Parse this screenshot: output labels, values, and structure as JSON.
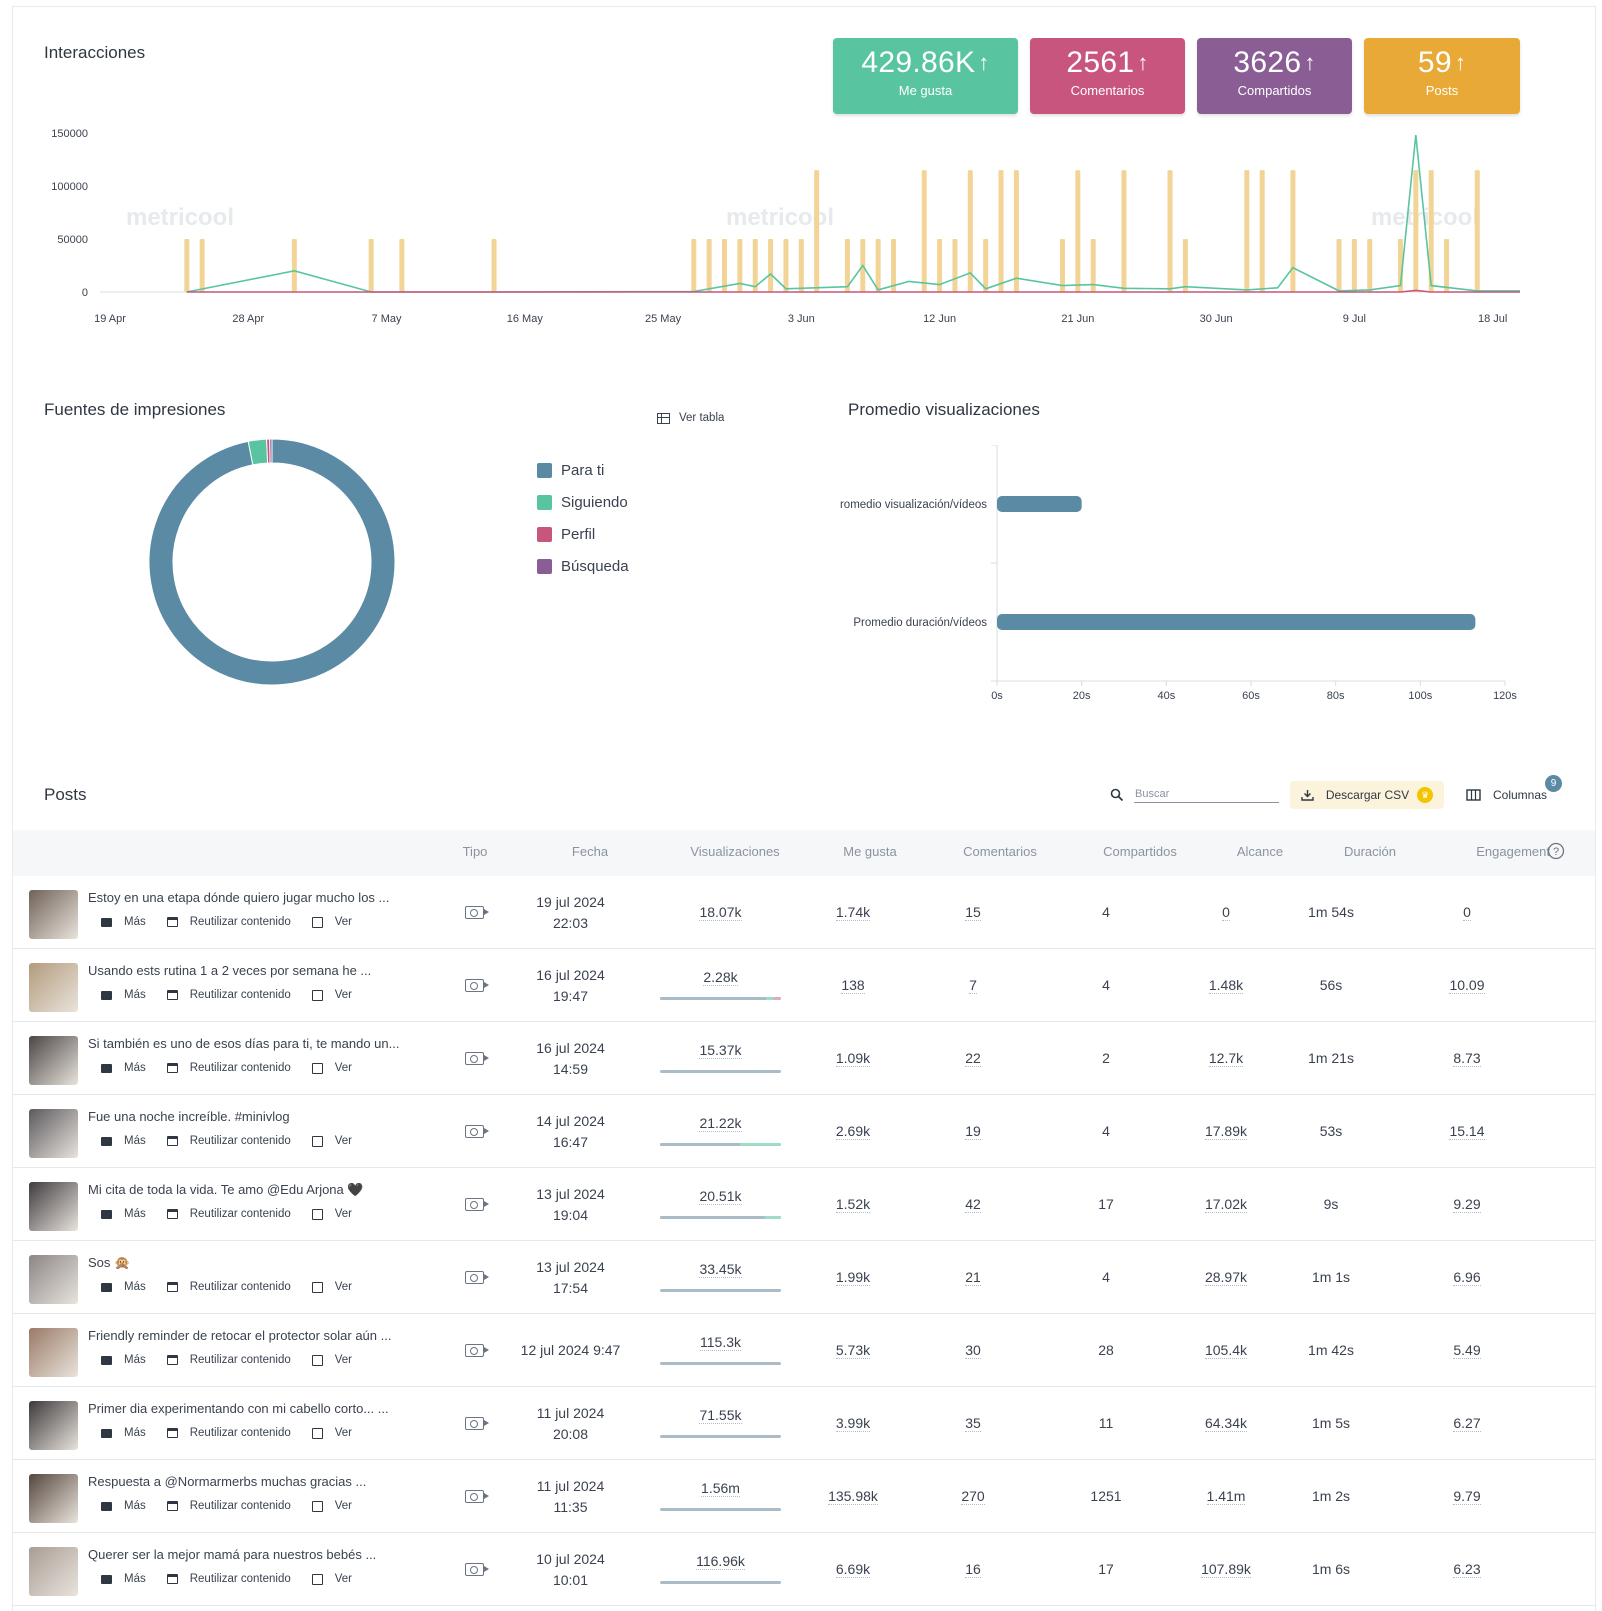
{
  "interacciones": {
    "title": "Interacciones",
    "kpis": [
      {
        "value": "429.86K",
        "label": "Me gusta",
        "color": "#59c5a0"
      },
      {
        "value": "2561",
        "label": "Comentarios",
        "color": "#c8557d"
      },
      {
        "value": "3626",
        "label": "Compartidos",
        "color": "#8a5e95"
      },
      {
        "value": "59",
        "label": "Posts",
        "color": "#e8a936"
      }
    ],
    "arrow": "↑",
    "watermark": "metricool"
  },
  "chart_data": [
    {
      "type": "line",
      "y_ticks": [
        "150000",
        "100000",
        "50000",
        "0"
      ],
      "x_ticks": [
        "19 Apr",
        "28 Apr",
        "7 May",
        "16 May",
        "25 May",
        "3 Jun",
        "12 Jun",
        "21 Jun",
        "30 Jun",
        "9 Jul",
        "18 Jul"
      ],
      "ylim": [
        0,
        150000
      ],
      "x_range_days": [
        0,
        91
      ],
      "bars_series": {
        "color": "#f2d497",
        "points": [
          [
            5,
            50000
          ],
          [
            6,
            50000
          ],
          [
            12,
            50000
          ],
          [
            17,
            50000
          ],
          [
            19,
            50000
          ],
          [
            25,
            50000
          ],
          [
            38,
            50000
          ],
          [
            39,
            50000
          ],
          [
            40,
            50000
          ],
          [
            41,
            50000
          ],
          [
            42,
            50000
          ],
          [
            43,
            50000
          ],
          [
            44,
            50000
          ],
          [
            45,
            50000
          ],
          [
            46,
            115000
          ],
          [
            48,
            50000
          ],
          [
            49,
            50000
          ],
          [
            50,
            50000
          ],
          [
            51,
            50000
          ],
          [
            53,
            115000
          ],
          [
            54,
            50000
          ],
          [
            55,
            50000
          ],
          [
            56,
            115000
          ],
          [
            57,
            50000
          ],
          [
            58,
            115000
          ],
          [
            59,
            115000
          ],
          [
            62,
            50000
          ],
          [
            63,
            115000
          ],
          [
            64,
            50000
          ],
          [
            66,
            115000
          ],
          [
            69,
            115000
          ],
          [
            70,
            50000
          ],
          [
            74,
            115000
          ],
          [
            75,
            115000
          ],
          [
            77,
            115000
          ],
          [
            80,
            50000
          ],
          [
            81,
            50000
          ],
          [
            82,
            50000
          ],
          [
            84,
            50000
          ],
          [
            85,
            115000
          ],
          [
            86,
            115000
          ],
          [
            87,
            50000
          ],
          [
            89,
            115000
          ],
          [
            92,
            50000
          ]
        ]
      },
      "series": [
        {
          "color": "#59c5a0",
          "points": [
            [
              5,
              0
            ],
            [
              12,
              20000
            ],
            [
              17,
              0
            ],
            [
              25,
              0
            ],
            [
              38,
              500
            ],
            [
              41,
              8000
            ],
            [
              42,
              5000
            ],
            [
              43,
              17000
            ],
            [
              44,
              3000
            ],
            [
              48,
              5000
            ],
            [
              49,
              25000
            ],
            [
              50,
              2000
            ],
            [
              52,
              10000
            ],
            [
              54,
              7000
            ],
            [
              56,
              18000
            ],
            [
              57,
              3000
            ],
            [
              59,
              13000
            ],
            [
              62,
              6000
            ],
            [
              64,
              7000
            ],
            [
              66,
              3500
            ],
            [
              69,
              3000
            ],
            [
              70,
              5000
            ],
            [
              74,
              2000
            ],
            [
              76,
              4000
            ],
            [
              77,
              23000
            ],
            [
              80,
              1000
            ],
            [
              82,
              2000
            ],
            [
              84,
              6000
            ],
            [
              85,
              148000
            ],
            [
              86,
              6000
            ],
            [
              89,
              1000
            ],
            [
              92,
              1000
            ]
          ]
        },
        {
          "color": "#c8557d",
          "points": [
            [
              5,
              0
            ],
            [
              84,
              0
            ],
            [
              85,
              1500
            ],
            [
              86,
              0
            ],
            [
              92,
              0
            ]
          ]
        }
      ]
    },
    {
      "type": "pie",
      "title": "Fuentes de impresiones",
      "categories": [
        "Para ti",
        "Siguiendo",
        "Perfil",
        "Búsqueda"
      ],
      "values": [
        96.9,
        2.4,
        0.4,
        0.3
      ],
      "colors": [
        "#5b8ba4",
        "#59c5a0",
        "#c8557d",
        "#8a5e95"
      ]
    },
    {
      "type": "bar",
      "title": "Promedio visualizaciones",
      "categories": [
        "Promedio visualización/vídeos",
        "Promedio duración/vídeos"
      ],
      "values": [
        20,
        113
      ],
      "xlim": [
        0,
        120
      ],
      "x_ticks": [
        "0s",
        "20s",
        "40s",
        "60s",
        "80s",
        "100s",
        "120s"
      ],
      "color": "#5b8ba4"
    }
  ],
  "fuentes": {
    "title": "Fuentes de impresiones",
    "ver_tabla": "Ver tabla",
    "legend": [
      "Para ti",
      "Siguiendo",
      "Perfil",
      "Búsqueda"
    ]
  },
  "promedio": {
    "title": "Promedio visualizaciones"
  },
  "posts": {
    "title": "Posts",
    "search_placeholder": "Buscar",
    "csv_label": "Descargar CSV",
    "columns_label": "Columnas",
    "columns_badge": "9",
    "headers": [
      "Tipo",
      "Fecha",
      "Visualizaciones",
      "Me gusta",
      "Comentarios",
      "Compartidos",
      "Alcance",
      "Duración",
      "Engagement"
    ],
    "action_labels": [
      "Más",
      "Reutilizar contenido",
      "Ver"
    ],
    "rows": [
      {
        "title": "Estoy en una etapa dónde quiero jugar mucho los ...",
        "date1": "19 jul 2024",
        "date2": "22:03",
        "views": "18.07k",
        "likes": "1.74k",
        "comments": "15",
        "shares": "4",
        "reach": "0",
        "duration": "1m 54s",
        "engagement": "0",
        "bar": [],
        "thumb": "#6f6258"
      },
      {
        "title": "Usando ests rutina 1 a 2 veces por semana he ...",
        "date1": "16 jul 2024",
        "date2": "19:47",
        "views": "2.28k",
        "likes": "138",
        "comments": "7",
        "shares": "4",
        "reach": "1.48k",
        "duration": "56s",
        "engagement": "10.09",
        "bar": [
          0.88,
          0.06,
          0.06
        ],
        "thumb": "#b39b7c"
      },
      {
        "title": "Si también es uno de esos días para ti, te mando un...",
        "date1": "16 jul 2024",
        "date2": "14:59",
        "views": "15.37k",
        "likes": "1.09k",
        "comments": "22",
        "shares": "2",
        "reach": "12.7k",
        "duration": "1m 21s",
        "engagement": "8.73",
        "bar": [
          1,
          0,
          0
        ],
        "thumb": "#4b4545"
      },
      {
        "title": "Fue una noche increíble.  #minivlog",
        "date1": "14 jul 2024",
        "date2": "16:47",
        "views": "21.22k",
        "likes": "2.69k",
        "comments": "19",
        "shares": "4",
        "reach": "17.89k",
        "duration": "53s",
        "engagement": "15.14",
        "bar": [
          0.66,
          0.34,
          0
        ],
        "thumb": "#5c5a5e"
      },
      {
        "title": "Mi cita de toda la vida. Te amo @Edu Arjona 🖤",
        "date1": "13 jul 2024",
        "date2": "19:04",
        "views": "20.51k",
        "likes": "1.52k",
        "comments": "42",
        "shares": "17",
        "reach": "17.02k",
        "duration": "9s",
        "engagement": "9.29",
        "bar": [
          0.87,
          0.13,
          0
        ],
        "thumb": "#403b40"
      },
      {
        "title": "Sos 🙊",
        "date1": "13 jul 2024",
        "date2": "17:54",
        "views": "33.45k",
        "likes": "1.99k",
        "comments": "21",
        "shares": "4",
        "reach": "28.97k",
        "duration": "1m 1s",
        "engagement": "6.96",
        "bar": [
          1,
          0,
          0
        ],
        "thumb": "#8b8686"
      },
      {
        "title": "Friendly reminder de retocar el protector solar aún ...",
        "date1": "12 jul 2024 9:47",
        "date2": "",
        "views": "115.3k",
        "likes": "5.73k",
        "comments": "30",
        "shares": "28",
        "reach": "105.4k",
        "duration": "1m 42s",
        "engagement": "5.49",
        "bar": [
          1,
          0,
          0
        ],
        "thumb": "#9a7a66"
      },
      {
        "title": "Primer dia experimentando con mi cabello corto... ...",
        "date1": "11 jul 2024",
        "date2": "20:08",
        "views": "71.55k",
        "likes": "3.99k",
        "comments": "35",
        "shares": "11",
        "reach": "64.34k",
        "duration": "1m 5s",
        "engagement": "6.27",
        "bar": [
          1,
          0,
          0
        ],
        "thumb": "#3d3a3c"
      },
      {
        "title": "Respuesta a @Normarmerbs muchas gracias ...",
        "date1": "11 jul 2024",
        "date2": "11:35",
        "views": "1.56m",
        "likes": "135.98k",
        "comments": "270",
        "shares": "1251",
        "reach": "1.41m",
        "duration": "1m 2s",
        "engagement": "9.79",
        "bar": [
          1,
          0,
          0
        ],
        "thumb": "#55473f"
      },
      {
        "title": "Querer ser la mejor mamá para nuestros bebés ...",
        "date1": "10 jul 2024",
        "date2": "10:01",
        "views": "116.96k",
        "likes": "6.69k",
        "comments": "16",
        "shares": "17",
        "reach": "107.89k",
        "duration": "1m 6s",
        "engagement": "6.23",
        "bar": [
          1,
          0,
          0
        ],
        "thumb": "#a89d95"
      }
    ]
  }
}
